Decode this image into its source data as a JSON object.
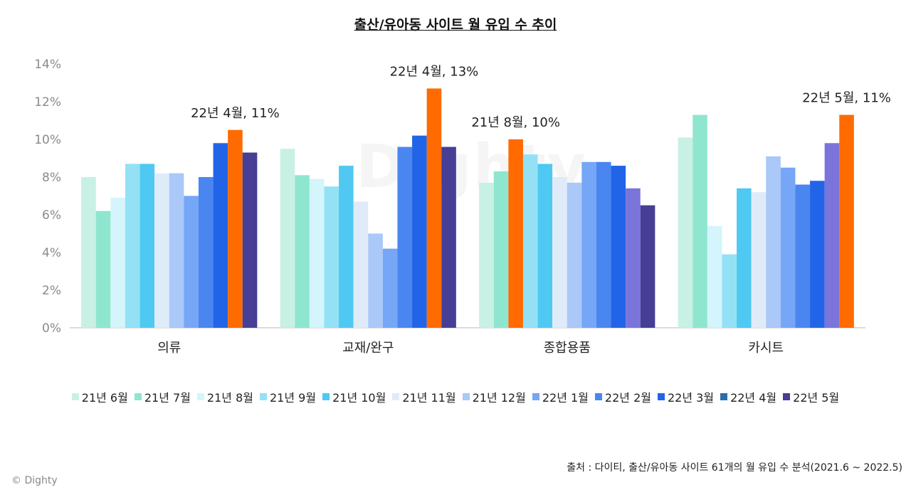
{
  "chart_data": {
    "type": "bar",
    "title": "출산/유아동 사이트 월 유입 수 추이",
    "categories": [
      "의류",
      "교재/완구",
      "종합용품",
      "카시트"
    ],
    "ylim": [
      0,
      14
    ],
    "yticks": [
      "0%",
      "2%",
      "4%",
      "6%",
      "8%",
      "10%",
      "12%",
      "14%"
    ],
    "series": [
      {
        "name": "21년 6월",
        "color": "#c9f0e4",
        "values": [
          8.0,
          9.5,
          7.7,
          10.1
        ]
      },
      {
        "name": "21년 7월",
        "color": "#8fe6cf",
        "values": [
          6.2,
          8.1,
          8.3,
          11.3
        ]
      },
      {
        "name": "21년 8월",
        "color": "#d3f5fb",
        "values": [
          6.9,
          7.9,
          10.0,
          5.4
        ]
      },
      {
        "name": "21년 9월",
        "color": "#94e1f6",
        "values": [
          8.7,
          7.5,
          9.2,
          3.9
        ]
      },
      {
        "name": "21년 10월",
        "color": "#4fc9f2",
        "values": [
          8.7,
          8.6,
          8.7,
          7.4
        ]
      },
      {
        "name": "21년 11월",
        "color": "#e0ebfa",
        "values": [
          8.2,
          6.7,
          8.0,
          7.2
        ]
      },
      {
        "name": "21년 12월",
        "color": "#aac8f8",
        "values": [
          8.2,
          5.0,
          7.7,
          9.1
        ]
      },
      {
        "name": "22년 1월",
        "color": "#76a6f6",
        "values": [
          7.0,
          4.2,
          8.8,
          8.5
        ]
      },
      {
        "name": "22년 2월",
        "color": "#4a86f0",
        "values": [
          8.0,
          9.6,
          8.8,
          7.6
        ]
      },
      {
        "name": "22년 3월",
        "color": "#2264e8",
        "values": [
          9.8,
          10.2,
          8.6,
          7.8
        ]
      },
      {
        "name": "22년 4월",
        "color": "#2a6fa8",
        "values": [
          10.5,
          12.7,
          7.4,
          9.8
        ]
      },
      {
        "name": "22년 5월",
        "color": "#463f95",
        "values": [
          9.3,
          9.6,
          6.5,
          11.3
        ]
      }
    ],
    "highlight": [
      {
        "category": 0,
        "series": 10,
        "color": "#ff6b00"
      },
      {
        "category": 1,
        "series": 10,
        "color": "#ff6b00"
      },
      {
        "category": 2,
        "series": 2,
        "color": "#ff6b00"
      },
      {
        "category": 3,
        "series": 11,
        "color": "#ff6b00"
      }
    ],
    "purple_override": [
      {
        "category": 2,
        "series": 10,
        "color": "#7b74da"
      },
      {
        "category": 3,
        "series": 10,
        "color": "#7b74da"
      }
    ],
    "annotations": [
      {
        "category": 0,
        "series": 10,
        "text": "22년 4월, 11%"
      },
      {
        "category": 1,
        "series": 10,
        "text": "22년 4월, 13%"
      },
      {
        "category": 2,
        "series": 2,
        "text": "21년 8월, 10%"
      },
      {
        "category": 3,
        "series": 11,
        "text": "22년 5월, 11%"
      }
    ],
    "grid": false,
    "legend_position": "bottom"
  },
  "source_text": "출처 : 다이티, 출산/유아동 사이트 61개의 월 유입 수 분석(2021.6 ~ 2022.5)",
  "watermark_text": "© Dighty",
  "bg_watermark": "Dighty"
}
